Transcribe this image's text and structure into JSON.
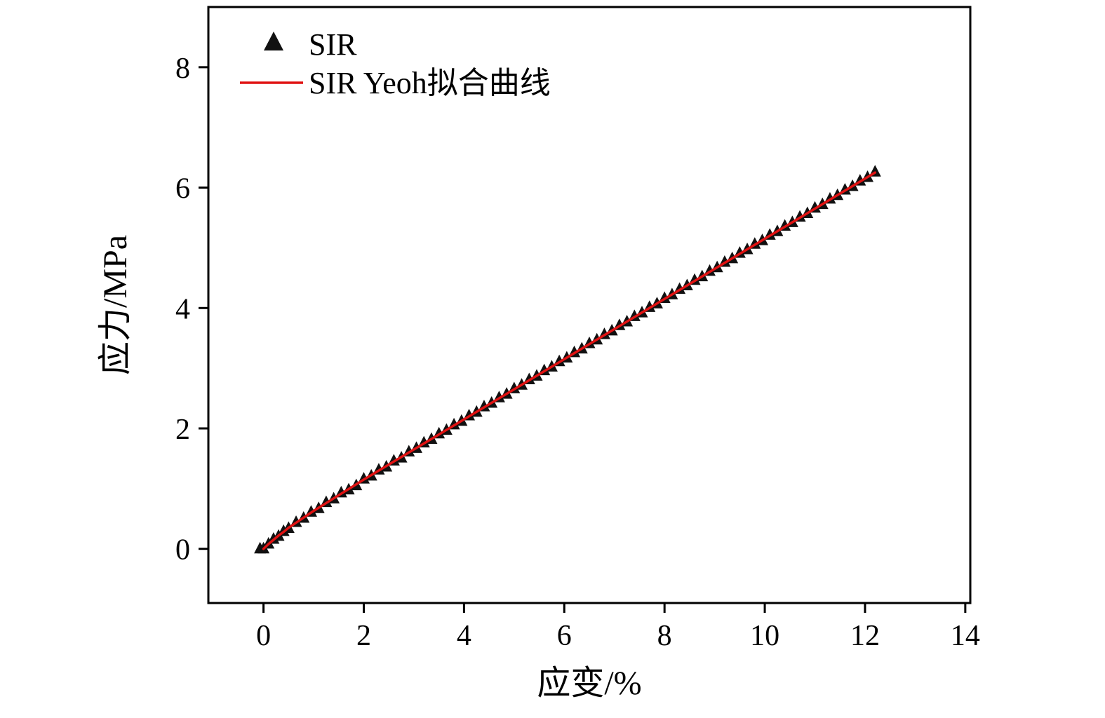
{
  "figure": {
    "background": "#ffffff"
  },
  "chart_data": {
    "type": "scatter",
    "title": "",
    "xlabel": "应变/%",
    "ylabel": "应力/MPa",
    "xlim": [
      -1.1,
      14.1
    ],
    "ylim": [
      -0.9,
      9.0
    ],
    "xticks": [
      0,
      2,
      4,
      6,
      8,
      10,
      12,
      14
    ],
    "yticks": [
      0,
      2,
      4,
      6,
      8
    ],
    "grid": false,
    "legend_position": "top-left",
    "colors": {
      "marker": "#111111",
      "fit_line": "#e01212",
      "axis": "#000000"
    },
    "series": [
      {
        "name": "SIR",
        "kind": "scatter",
        "marker": "triangle-up",
        "color": "#111111",
        "points": [
          [
            -0.07,
            0.0
          ],
          [
            0.0,
            0.0
          ],
          [
            0.1,
            0.08
          ],
          [
            0.2,
            0.16
          ],
          [
            0.3,
            0.21
          ],
          [
            0.4,
            0.29
          ],
          [
            0.5,
            0.34
          ],
          [
            0.65,
            0.44
          ],
          [
            0.8,
            0.51
          ],
          [
            0.95,
            0.61
          ],
          [
            1.1,
            0.67
          ],
          [
            1.25,
            0.77
          ],
          [
            1.4,
            0.83
          ],
          [
            1.55,
            0.93
          ],
          [
            1.7,
            0.98
          ],
          [
            1.85,
            1.05
          ],
          [
            2.0,
            1.16
          ],
          [
            2.15,
            1.21
          ],
          [
            2.3,
            1.31
          ],
          [
            2.45,
            1.36
          ],
          [
            2.6,
            1.46
          ],
          [
            2.75,
            1.51
          ],
          [
            2.9,
            1.61
          ],
          [
            3.05,
            1.67
          ],
          [
            3.2,
            1.76
          ],
          [
            3.35,
            1.82
          ],
          [
            3.5,
            1.91
          ],
          [
            3.65,
            1.97
          ],
          [
            3.8,
            2.06
          ],
          [
            3.95,
            2.12
          ],
          [
            4.1,
            2.21
          ],
          [
            4.25,
            2.27
          ],
          [
            4.4,
            2.36
          ],
          [
            4.55,
            2.42
          ],
          [
            4.7,
            2.51
          ],
          [
            4.85,
            2.57
          ],
          [
            5.0,
            2.66
          ],
          [
            5.15,
            2.72
          ],
          [
            5.3,
            2.81
          ],
          [
            5.45,
            2.87
          ],
          [
            5.6,
            2.96
          ],
          [
            5.75,
            3.02
          ],
          [
            5.9,
            3.11
          ],
          [
            6.05,
            3.17
          ],
          [
            6.2,
            3.26
          ],
          [
            6.35,
            3.32
          ],
          [
            6.5,
            3.41
          ],
          [
            6.65,
            3.47
          ],
          [
            6.8,
            3.56
          ],
          [
            6.95,
            3.62
          ],
          [
            7.1,
            3.71
          ],
          [
            7.25,
            3.77
          ],
          [
            7.4,
            3.86
          ],
          [
            7.55,
            3.92
          ],
          [
            7.7,
            4.01
          ],
          [
            7.85,
            4.07
          ],
          [
            8.0,
            4.16
          ],
          [
            8.15,
            4.22
          ],
          [
            8.3,
            4.31
          ],
          [
            8.45,
            4.37
          ],
          [
            8.6,
            4.46
          ],
          [
            8.75,
            4.52
          ],
          [
            8.9,
            4.61
          ],
          [
            9.05,
            4.67
          ],
          [
            9.2,
            4.76
          ],
          [
            9.35,
            4.82
          ],
          [
            9.5,
            4.91
          ],
          [
            9.65,
            4.97
          ],
          [
            9.8,
            5.06
          ],
          [
            9.95,
            5.12
          ],
          [
            10.1,
            5.21
          ],
          [
            10.25,
            5.27
          ],
          [
            10.4,
            5.36
          ],
          [
            10.55,
            5.42
          ],
          [
            10.7,
            5.51
          ],
          [
            10.85,
            5.57
          ],
          [
            11.0,
            5.66
          ],
          [
            11.15,
            5.72
          ],
          [
            11.3,
            5.81
          ],
          [
            11.45,
            5.87
          ],
          [
            11.6,
            5.96
          ],
          [
            11.75,
            6.02
          ],
          [
            11.9,
            6.11
          ],
          [
            12.05,
            6.17
          ],
          [
            12.2,
            6.26
          ]
        ]
      },
      {
        "name": "SIR Yeoh拟合曲线",
        "kind": "line",
        "color": "#e01212",
        "points": [
          [
            0.0,
            0.0
          ],
          [
            0.1,
            0.08
          ],
          [
            0.2,
            0.15
          ],
          [
            0.3,
            0.22
          ],
          [
            0.4,
            0.28
          ],
          [
            0.5,
            0.35
          ],
          [
            0.75,
            0.49
          ],
          [
            1.0,
            0.63
          ],
          [
            1.5,
            0.89
          ],
          [
            2.0,
            1.15
          ],
          [
            2.5,
            1.4
          ],
          [
            3.0,
            1.65
          ],
          [
            3.5,
            1.9
          ],
          [
            4.0,
            2.15
          ],
          [
            4.5,
            2.4
          ],
          [
            5.0,
            2.65
          ],
          [
            5.5,
            2.9
          ],
          [
            6.0,
            3.15
          ],
          [
            6.5,
            3.4
          ],
          [
            7.0,
            3.65
          ],
          [
            7.5,
            3.9
          ],
          [
            8.0,
            4.15
          ],
          [
            8.5,
            4.4
          ],
          [
            9.0,
            4.65
          ],
          [
            9.5,
            4.9
          ],
          [
            10.0,
            5.15
          ],
          [
            10.5,
            5.4
          ],
          [
            11.0,
            5.65
          ],
          [
            11.5,
            5.9
          ],
          [
            12.0,
            6.15
          ],
          [
            12.2,
            6.25
          ]
        ]
      }
    ]
  }
}
